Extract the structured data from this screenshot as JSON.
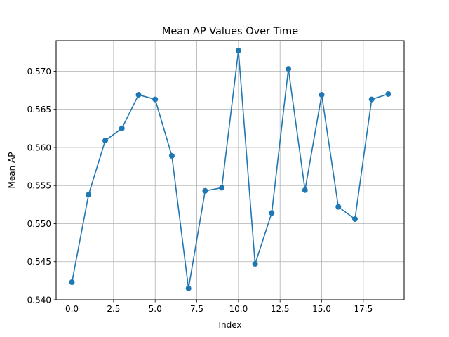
{
  "chart_data": {
    "type": "line",
    "title": "Mean AP Values Over Time",
    "xlabel": "Index",
    "ylabel": "Mean AP",
    "xlim": [
      -0.95,
      19.95
    ],
    "ylim": [
      0.54,
      0.574
    ],
    "x_ticks": [
      0.0,
      2.5,
      5.0,
      7.5,
      10.0,
      12.5,
      15.0,
      17.5
    ],
    "x_tick_labels": [
      "0.0",
      "2.5",
      "5.0",
      "7.5",
      "10.0",
      "12.5",
      "15.0",
      "17.5"
    ],
    "y_ticks": [
      0.54,
      0.545,
      0.55,
      0.555,
      0.56,
      0.565,
      0.57
    ],
    "y_tick_labels": [
      "0.540",
      "0.545",
      "0.550",
      "0.555",
      "0.560",
      "0.565",
      "0.570"
    ],
    "grid": true,
    "color": "#1f77b4",
    "marker": "circle",
    "series": [
      {
        "x": [
          0,
          1,
          2,
          3,
          4,
          5,
          6,
          7,
          8,
          9,
          10,
          11,
          12,
          13,
          14,
          15,
          16,
          17,
          18,
          19
        ],
        "values": [
          0.5423,
          0.5538,
          0.5609,
          0.5625,
          0.5669,
          0.5663,
          0.5589,
          0.5415,
          0.5543,
          0.5547,
          0.5727,
          0.5447,
          0.5514,
          0.5703,
          0.5544,
          0.5669,
          0.5522,
          0.5506,
          0.5663,
          0.567
        ]
      }
    ]
  }
}
